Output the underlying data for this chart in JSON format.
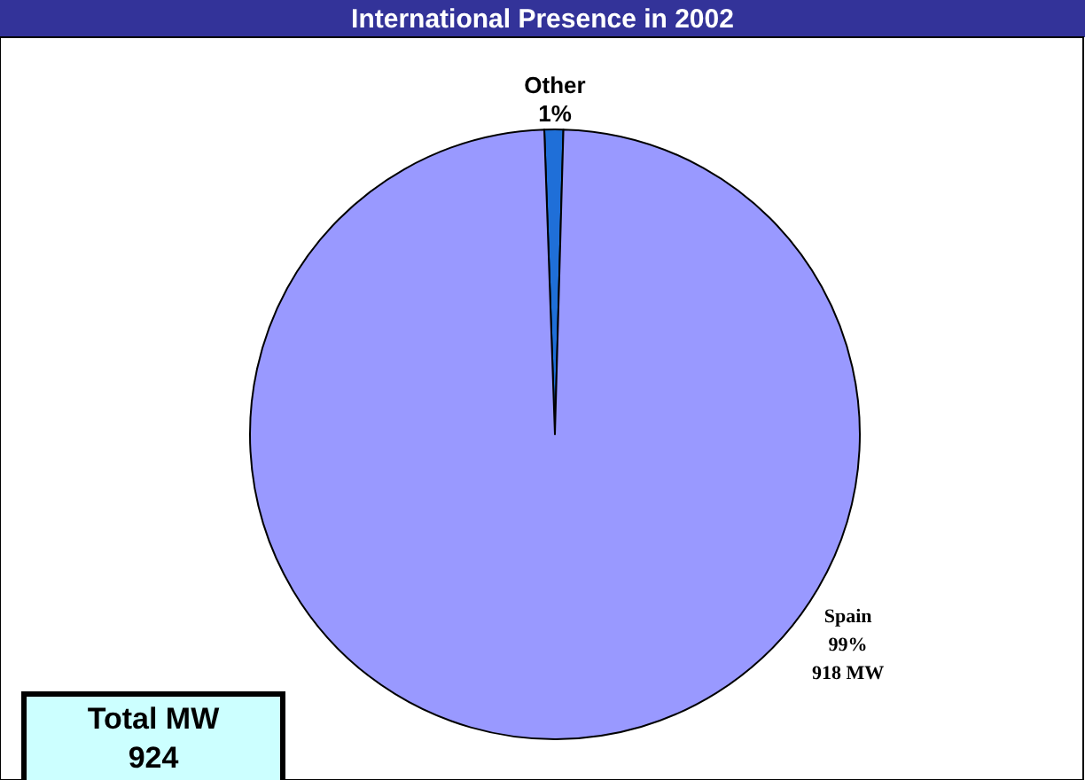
{
  "chart_data": {
    "type": "pie",
    "title": "International Presence in 2002",
    "categories": [
      "Other",
      "Spain"
    ],
    "values": [
      1,
      99
    ],
    "colors": [
      "#1f6fd8",
      "#9999ff"
    ],
    "value_labels": [
      "1%",
      "99%\n918 MW"
    ],
    "annotations": [
      "Total MW\n924"
    ],
    "legend": false
  }
}
